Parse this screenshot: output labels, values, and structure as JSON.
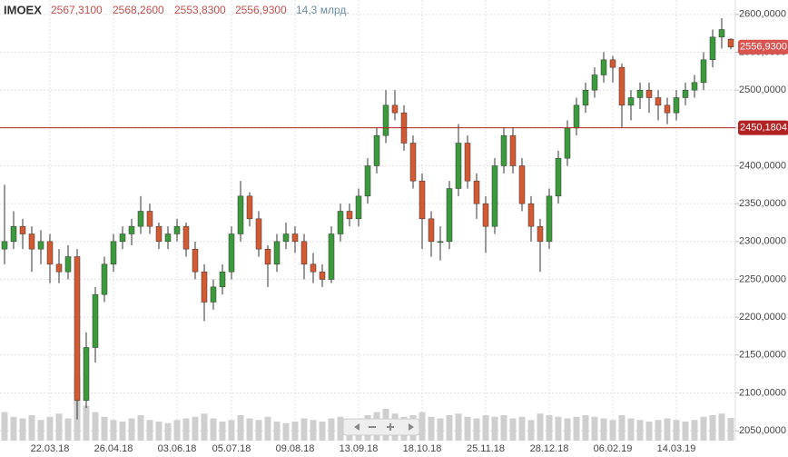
{
  "chart_data": {
    "type": "candlestick",
    "header": {
      "ticker": "IMOEX",
      "open": "2567,3100",
      "high": "2568,2600",
      "low": "2553,8300",
      "close": "2556,9300",
      "volume": "14,3 млрд."
    },
    "categories": [
      null,
      null,
      null,
      null,
      null,
      "22.03.18",
      null,
      null,
      null,
      null,
      null,
      null,
      "26.04.18",
      null,
      null,
      null,
      null,
      null,
      null,
      "03.06.18",
      null,
      null,
      null,
      null,
      null,
      "05.07.18",
      null,
      null,
      null,
      null,
      null,
      null,
      "09.08.18",
      null,
      null,
      null,
      null,
      null,
      null,
      "13.09.18",
      null,
      null,
      null,
      null,
      null,
      null,
      "18.10.18",
      null,
      null,
      null,
      null,
      null,
      null,
      "25.11.18",
      null,
      null,
      null,
      null,
      null,
      null,
      "28.12.18",
      null,
      null,
      null,
      null,
      null,
      null,
      "06.02.19",
      null,
      null,
      null,
      null,
      null,
      null,
      "14.03.19",
      null,
      null,
      null,
      null,
      null,
      null
    ],
    "open": [
      2290,
      2300,
      2320,
      2310,
      2290,
      2300,
      2270,
      2260,
      2280,
      2090,
      2160,
      2230,
      2270,
      2300,
      2310,
      2320,
      2340,
      2320,
      2300,
      2310,
      2320,
      2290,
      2260,
      2220,
      2240,
      2260,
      2310,
      2360,
      2330,
      2290,
      2270,
      2300,
      2310,
      2300,
      2270,
      2260,
      2250,
      2310,
      2340,
      2330,
      2360,
      2400,
      2440,
      2480,
      2470,
      2430,
      2380,
      2330,
      2300,
      2300,
      2370,
      2430,
      2380,
      2350,
      2320,
      2400,
      2440,
      2400,
      2350,
      2320,
      2300,
      2360,
      2410,
      2450,
      2480,
      2500,
      2520,
      2540,
      2530,
      2480,
      2490,
      2500,
      2490,
      2480,
      2470,
      2490,
      2500,
      2510,
      2540,
      2570,
      2567.31
    ],
    "high": [
      2375,
      2340,
      2330,
      2320,
      2315,
      2310,
      2290,
      2295,
      2290,
      2180,
      2240,
      2280,
      2310,
      2320,
      2330,
      2360,
      2350,
      2325,
      2320,
      2330,
      2325,
      2300,
      2270,
      2250,
      2270,
      2320,
      2380,
      2365,
      2340,
      2295,
      2310,
      2325,
      2320,
      2310,
      2285,
      2270,
      2320,
      2350,
      2350,
      2370,
      2410,
      2450,
      2500,
      2500,
      2480,
      2440,
      2390,
      2340,
      2320,
      2380,
      2455,
      2440,
      2390,
      2360,
      2410,
      2450,
      2450,
      2410,
      2360,
      2330,
      2370,
      2420,
      2460,
      2490,
      2510,
      2530,
      2550,
      2545,
      2535,
      2500,
      2510,
      2510,
      2500,
      2490,
      2500,
      2510,
      2520,
      2550,
      2580,
      2595,
      2568.26
    ],
    "low": [
      2270,
      2290,
      2290,
      2260,
      2270,
      2245,
      2245,
      2250,
      2065,
      2080,
      2140,
      2220,
      2260,
      2290,
      2295,
      2310,
      2310,
      2290,
      2290,
      2300,
      2280,
      2250,
      2195,
      2210,
      2230,
      2250,
      2300,
      2320,
      2280,
      2240,
      2260,
      2290,
      2285,
      2250,
      2245,
      2240,
      2245,
      2300,
      2320,
      2320,
      2350,
      2390,
      2430,
      2460,
      2420,
      2370,
      2290,
      2280,
      2275,
      2290,
      2360,
      2370,
      2330,
      2285,
      2310,
      2390,
      2390,
      2340,
      2300,
      2260,
      2290,
      2350,
      2400,
      2440,
      2470,
      2490,
      2510,
      2510,
      2450,
      2460,
      2475,
      2470,
      2460,
      2455,
      2460,
      2480,
      2490,
      2500,
      2530,
      2555,
      2553.83
    ],
    "close": [
      2300,
      2320,
      2310,
      2290,
      2300,
      2270,
      2260,
      2280,
      2090,
      2160,
      2230,
      2270,
      2300,
      2310,
      2320,
      2340,
      2320,
      2300,
      2310,
      2320,
      2290,
      2260,
      2220,
      2240,
      2260,
      2310,
      2360,
      2330,
      2290,
      2270,
      2300,
      2310,
      2300,
      2270,
      2260,
      2250,
      2310,
      2340,
      2330,
      2360,
      2400,
      2440,
      2480,
      2470,
      2430,
      2380,
      2330,
      2300,
      2300,
      2370,
      2430,
      2380,
      2350,
      2320,
      2400,
      2440,
      2400,
      2350,
      2320,
      2300,
      2360,
      2410,
      2450,
      2480,
      2500,
      2520,
      2540,
      2530,
      2480,
      2490,
      2500,
      2490,
      2480,
      2470,
      2490,
      2500,
      2510,
      2540,
      2570,
      2580,
      2556.93
    ],
    "volume": [
      18,
      15,
      14,
      16,
      13,
      15,
      17,
      14,
      40,
      22,
      18,
      15,
      13,
      12,
      14,
      16,
      13,
      12,
      11,
      13,
      14,
      15,
      17,
      14,
      12,
      13,
      16,
      14,
      13,
      15,
      12,
      11,
      12,
      14,
      13,
      12,
      14,
      15,
      13,
      14,
      16,
      18,
      20,
      17,
      15,
      16,
      18,
      15,
      14,
      16,
      17,
      15,
      14,
      16,
      15,
      16,
      14,
      15,
      13,
      17,
      16,
      15,
      14,
      15,
      16,
      15,
      14,
      13,
      16,
      14,
      13,
      12,
      13,
      14,
      13,
      12,
      13,
      15,
      16,
      17,
      14.3
    ],
    "up_color": "#3c9a3c",
    "down_color": "#d25a32",
    "volume_color": "#cfcfcf",
    "ylim": [
      2037,
      2619
    ],
    "yticks": [
      {
        "value": 2050,
        "label": "2050,0000"
      },
      {
        "value": 2100,
        "label": "2100,0000"
      },
      {
        "value": 2150,
        "label": "2150,0000"
      },
      {
        "value": 2200,
        "label": "2200,0000"
      },
      {
        "value": 2250,
        "label": "2250,0000"
      },
      {
        "value": 2300,
        "label": "2300,0000"
      },
      {
        "value": 2350,
        "label": "2350,0000"
      },
      {
        "value": 2400,
        "label": "2400,0000"
      },
      {
        "value": 2450,
        "label": "2450,0000"
      },
      {
        "value": 2500,
        "label": "2500,0000"
      },
      {
        "value": 2550,
        "label": "2550,0000"
      },
      {
        "value": 2600,
        "label": "2600,0000"
      }
    ],
    "hline": {
      "value": 2450.1804,
      "label": "2450,1804",
      "color": "#b22222"
    },
    "last_price": {
      "value": 2556.93,
      "label": "2556,9300",
      "color": "#d9534f"
    },
    "grid": true
  }
}
